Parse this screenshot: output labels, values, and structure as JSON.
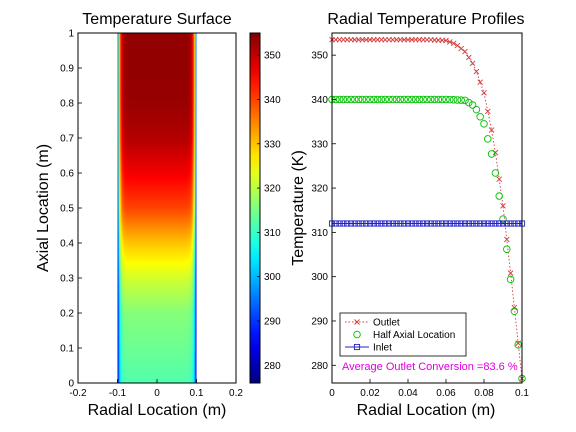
{
  "chart_data": [
    {
      "type": "heatmap",
      "title": "Temperature Surface",
      "xlabel": "Radial Location (m)",
      "ylabel": "Axial Location (m)",
      "xlim": [
        -0.2,
        0.2
      ],
      "ylim": [
        0,
        1
      ],
      "xticks": [
        "-0.2",
        "-0.1",
        "0",
        "0.1",
        "0.2"
      ],
      "yticks": [
        "0",
        "0.1",
        "0.2",
        "0.3",
        "0.4",
        "0.5",
        "0.6",
        "0.7",
        "0.8",
        "0.9",
        "1"
      ],
      "colormap": "jet",
      "colorbar": {
        "min": 276,
        "max": 355,
        "ticks": [
          "280",
          "290",
          "300",
          "310",
          "320",
          "330",
          "340",
          "350"
        ]
      },
      "radial_extent": [
        -0.1,
        0.1
      ],
      "wall_temperature": 277,
      "centerline_profile": [
        {
          "z": 0.0,
          "T": 312
        },
        {
          "z": 0.1,
          "T": 314
        },
        {
          "z": 0.2,
          "T": 316
        },
        {
          "z": 0.3,
          "T": 322
        },
        {
          "z": 0.4,
          "T": 330
        },
        {
          "z": 0.5,
          "T": 340
        },
        {
          "z": 0.6,
          "T": 346
        },
        {
          "z": 0.7,
          "T": 351
        },
        {
          "z": 0.8,
          "T": 353
        },
        {
          "z": 0.9,
          "T": 353.5
        },
        {
          "z": 1.0,
          "T": 353.5
        }
      ]
    },
    {
      "type": "line",
      "title": "Radial Temperature Profiles",
      "xlabel": "Radial Location (m)",
      "ylabel": "Temperature (K)",
      "xlim": [
        0,
        0.1
      ],
      "ylim": [
        276,
        355
      ],
      "xticks": [
        "0",
        "0.02",
        "0.04",
        "0.06",
        "0.08",
        "0.1"
      ],
      "yticks": [
        "280",
        "290",
        "300",
        "310",
        "320",
        "330",
        "340",
        "350"
      ],
      "legend_position": "bottom-left",
      "series": [
        {
          "name": "Outlet",
          "color": "#d23c3c",
          "marker": "x",
          "line": "dotted",
          "points": [
            [
              0,
              353.5
            ],
            [
              0.05,
              353.5
            ],
            [
              0.06,
              353.3
            ],
            [
              0.065,
              352.5
            ],
            [
              0.07,
              350.8
            ],
            [
              0.075,
              347.5
            ],
            [
              0.08,
              341.5
            ],
            [
              0.085,
              331
            ],
            [
              0.09,
              316
            ],
            [
              0.095,
              297
            ],
            [
              0.1,
              277
            ]
          ]
        },
        {
          "name": "Half Axial Location",
          "color": "#00c000",
          "marker": "o",
          "line": "none",
          "points": [
            [
              0,
              340
            ],
            [
              0.06,
              340
            ],
            [
              0.07,
              339.8
            ],
            [
              0.075,
              338.5
            ],
            [
              0.08,
              334.5
            ],
            [
              0.085,
              326
            ],
            [
              0.09,
              313
            ],
            [
              0.095,
              296
            ],
            [
              0.1,
              277
            ]
          ]
        },
        {
          "name": "Inlet",
          "color": "#2020c8",
          "marker": "s",
          "line": "solid",
          "points": [
            [
              0,
              312
            ],
            [
              0.1,
              312
            ]
          ]
        }
      ],
      "annotation": "Average Outlet Conversion =83.6 %",
      "annotation_color": "#e000e0"
    }
  ]
}
